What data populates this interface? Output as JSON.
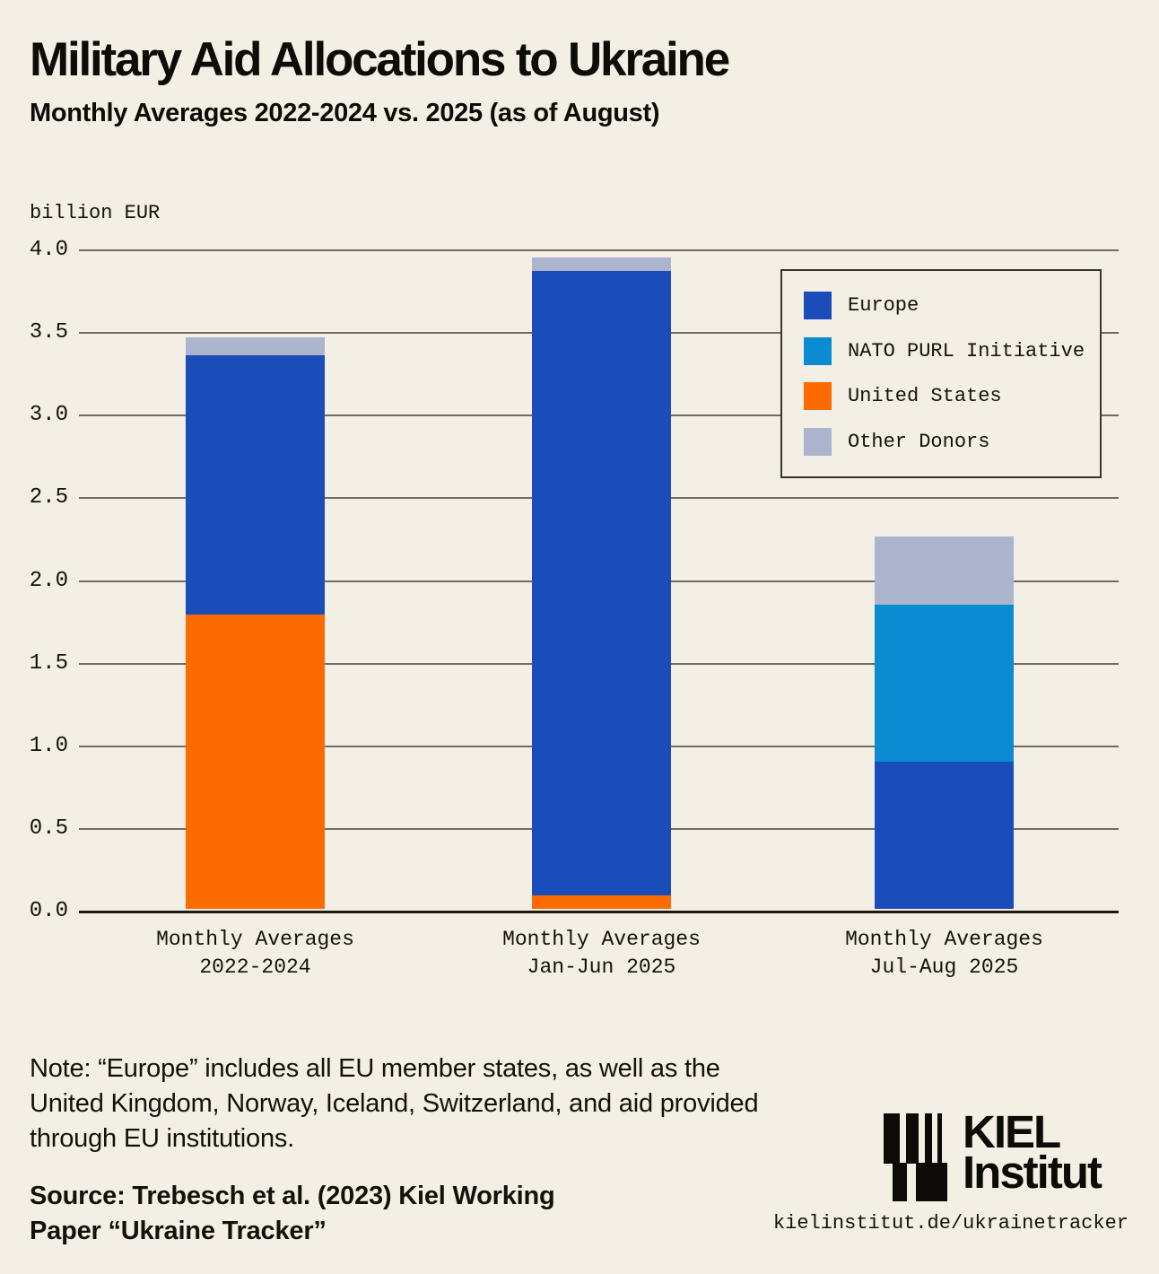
{
  "page": {
    "background_color": "#f3efe4",
    "text_color": "#14110b"
  },
  "header": {
    "title": "Military Aid Allocations to Ukraine",
    "subtitle": "Monthly Averages 2022-2024 vs. 2025 (as of August)"
  },
  "chart_data": {
    "type": "bar",
    "stacked": true,
    "title": "Military Aid Allocations to Ukraine",
    "subtitle": "Monthly Averages 2022-2024 vs. 2025 (as of August)",
    "unit_label": "billion EUR",
    "xlabel": "",
    "ylabel": "billion EUR",
    "ylim": [
      0.0,
      4.0
    ],
    "yticks": [
      0.0,
      0.5,
      1.0,
      1.5,
      2.0,
      2.5,
      3.0,
      3.5,
      4.0
    ],
    "grid": true,
    "legend_position": "top-right",
    "categories": [
      "Monthly Averages\n2022-2024",
      "Monthly Averages\nJan-Jun 2025",
      "Monthly Averages\nJul-Aug 2025"
    ],
    "series": [
      {
        "name": "Europe",
        "color": "#1a4cba",
        "values": [
          1.57,
          3.78,
          0.89
        ]
      },
      {
        "name": "NATO PURL Initiative",
        "color": "#0a8bd2",
        "values": [
          0.0,
          0.0,
          0.95
        ]
      },
      {
        "name": "United States",
        "color": "#fc6b00",
        "values": [
          1.78,
          0.08,
          0.0
        ]
      },
      {
        "name": "Other Donors",
        "color": "#adb5ce",
        "values": [
          0.11,
          0.08,
          0.41
        ]
      }
    ],
    "stack_order_bottom_to_top": [
      "United States",
      "Europe",
      "NATO PURL Initiative",
      "Other Donors"
    ],
    "bar_totals": [
      3.46,
      3.94,
      2.25
    ],
    "colors": {
      "gridline": "#716c61",
      "zero_axis": "#1e1a12"
    }
  },
  "footer": {
    "note": "Note: “Europe” includes all EU member states, as well as the\nUnited Kingdom, Norway, Iceland, Switzerland, and aid provided\nthrough EU institutions.",
    "source": "Source: Trebesch et al. (2023) Kiel Working\nPaper “Ukraine Tracker”",
    "url": "kielinstitut.de/ukrainetracker",
    "logo": {
      "name": "Kiel Institut",
      "line1": "KIEL",
      "line2": "Institut"
    }
  }
}
